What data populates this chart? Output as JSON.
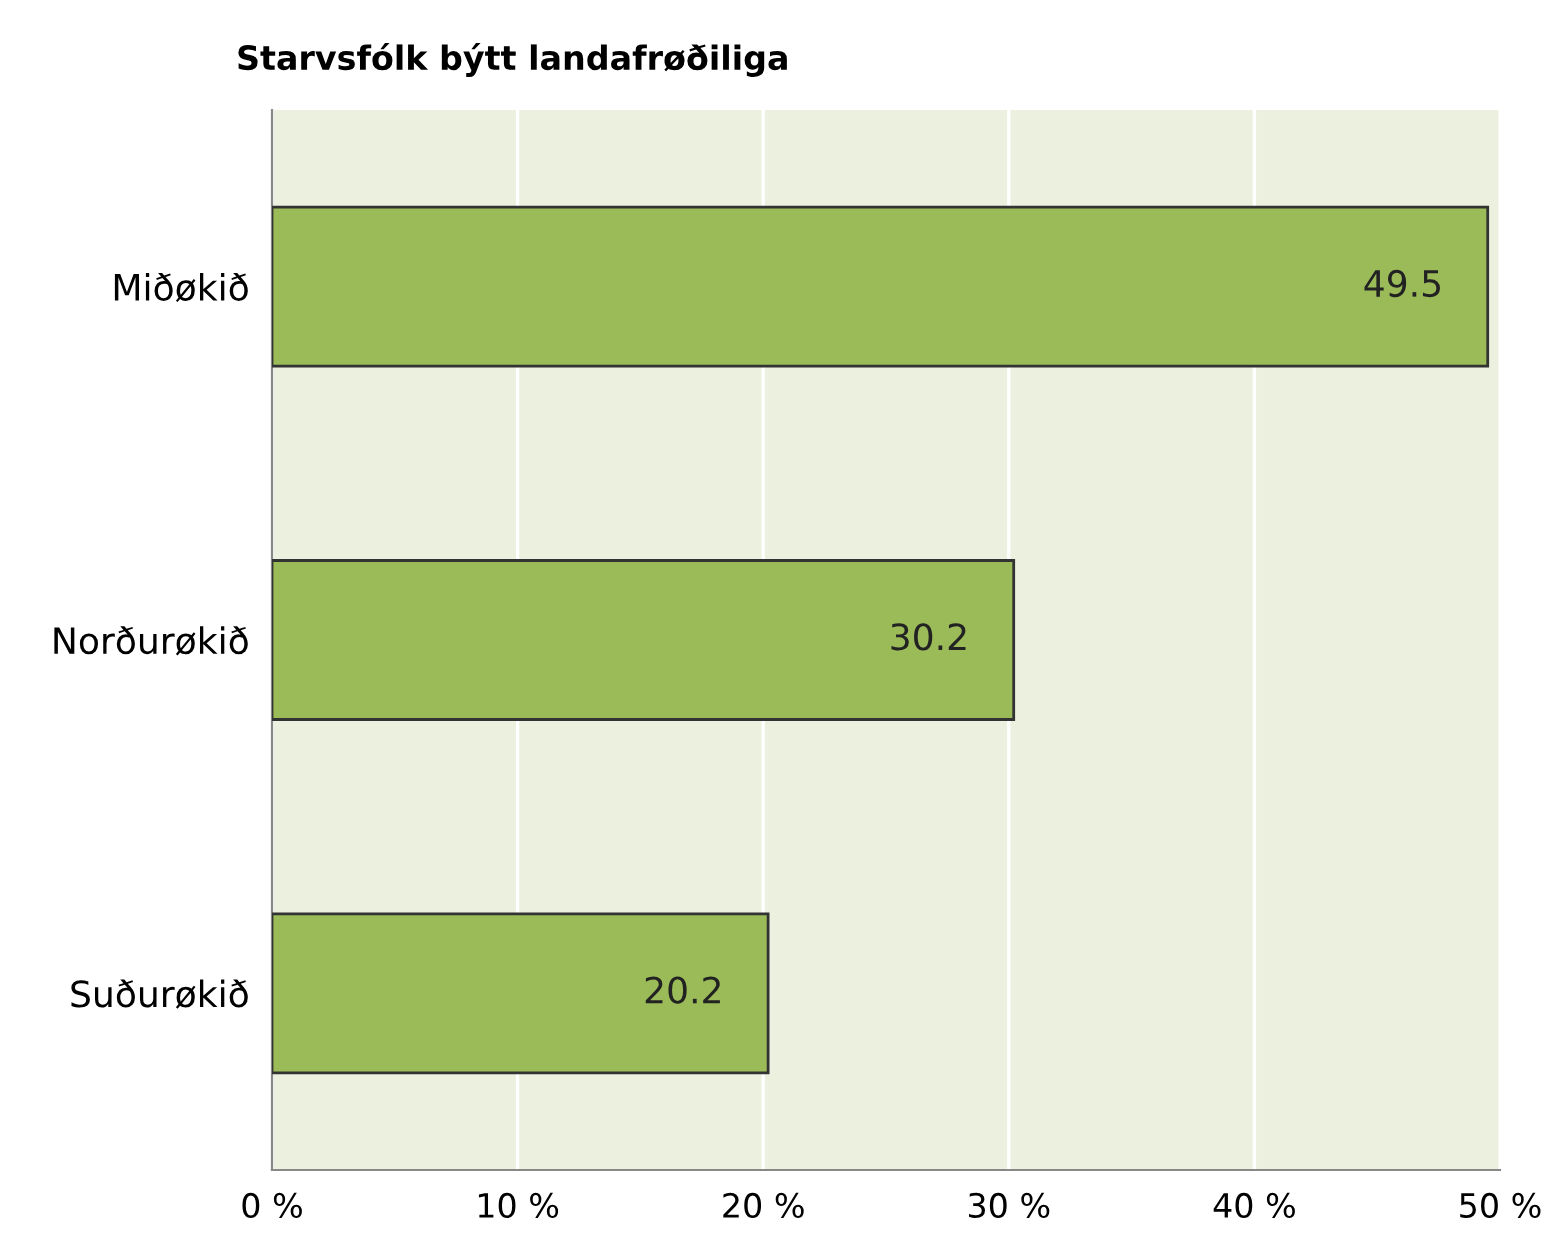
{
  "chart_data": {
    "type": "bar",
    "orientation": "horizontal",
    "title": "Starvsfólk býtt landafrøðiliga",
    "categories": [
      "Miðøkið",
      "Norðurøkið",
      "Suðurøkið"
    ],
    "values": [
      49.5,
      30.2,
      20.2
    ],
    "color": "#9bbb59",
    "data_labels": true,
    "xlim": [
      0,
      50
    ],
    "xticks": [
      {
        "value": 0,
        "label": "0 %"
      },
      {
        "value": 10,
        "label": "10 %"
      },
      {
        "value": 20,
        "label": "20 %"
      },
      {
        "value": 30,
        "label": "30 %"
      },
      {
        "value": 40,
        "label": "40 %"
      },
      {
        "value": 50,
        "label": "50 %"
      }
    ],
    "grid": "x",
    "legend": false
  }
}
